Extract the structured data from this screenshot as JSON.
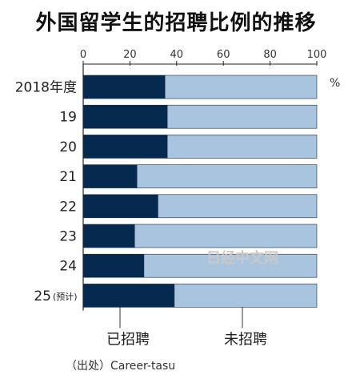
{
  "title": "外国留学生的招聘比例的推移",
  "source": "（出处）Career-tasu",
  "watermark": "日经中文网",
  "colors": {
    "hired": "#062a4f",
    "not_hired": "#a8c4df",
    "axis": "#222222"
  },
  "chart_data": {
    "type": "bar",
    "orientation": "horizontal",
    "stacked": true,
    "title": "外国留学生的招聘比例的推移",
    "unit": "%",
    "xlim": [
      0,
      100
    ],
    "ticks": [
      0,
      20,
      40,
      60,
      80,
      100
    ],
    "categories": [
      "2018年度",
      "19",
      "20",
      "21",
      "22",
      "23",
      "24",
      "25"
    ],
    "category_notes": [
      "",
      "",
      "",
      "",
      "",
      "",
      "",
      "(预计)"
    ],
    "series": [
      {
        "name": "已招聘",
        "values": [
          35,
          36,
          36,
          23,
          32,
          22,
          26,
          39
        ]
      },
      {
        "name": "未招聘",
        "values": [
          65,
          64,
          64,
          77,
          68,
          78,
          74,
          61
        ]
      }
    ],
    "legend_position": "bottom"
  }
}
